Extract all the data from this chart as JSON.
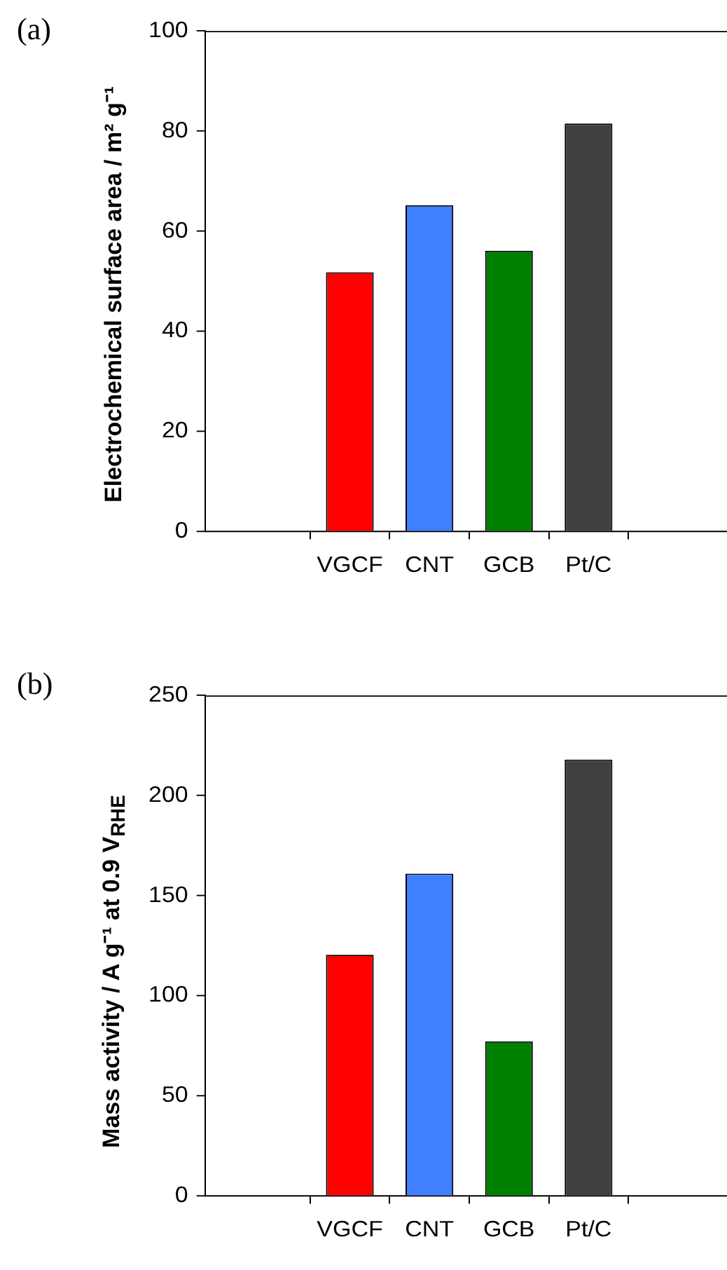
{
  "chart_data": [
    {
      "type": "bar",
      "annotations": [
        "(a)"
      ],
      "ylabel": "Electrochemical surface area / m² g⁻¹",
      "categories": [
        "VGCF",
        "CNT",
        "GCB",
        "Pt/C"
      ],
      "values": [
        51.8,
        65.2,
        56.1,
        81.5
      ],
      "colors": [
        "#ff0000",
        "#4080ff",
        "#008000",
        "#404040"
      ],
      "ylim": [
        0,
        100
      ],
      "yticks": [
        0,
        20,
        40,
        60,
        80,
        100
      ],
      "grid": false,
      "legend": false
    },
    {
      "type": "bar",
      "annotations": [
        "(b)"
      ],
      "ylabel": "Mass activity / A g⁻¹ at 0.9 V$_{RHE}$",
      "categories": [
        "VGCF",
        "CNT",
        "GCB",
        "Pt/C"
      ],
      "values": [
        120.5,
        161,
        77.2,
        218
      ],
      "colors": [
        "#ff0000",
        "#4080ff",
        "#008000",
        "#404040"
      ],
      "ylim": [
        0,
        250
      ],
      "yticks": [
        0,
        50,
        100,
        150,
        200,
        250
      ],
      "grid": false,
      "legend": false
    }
  ]
}
